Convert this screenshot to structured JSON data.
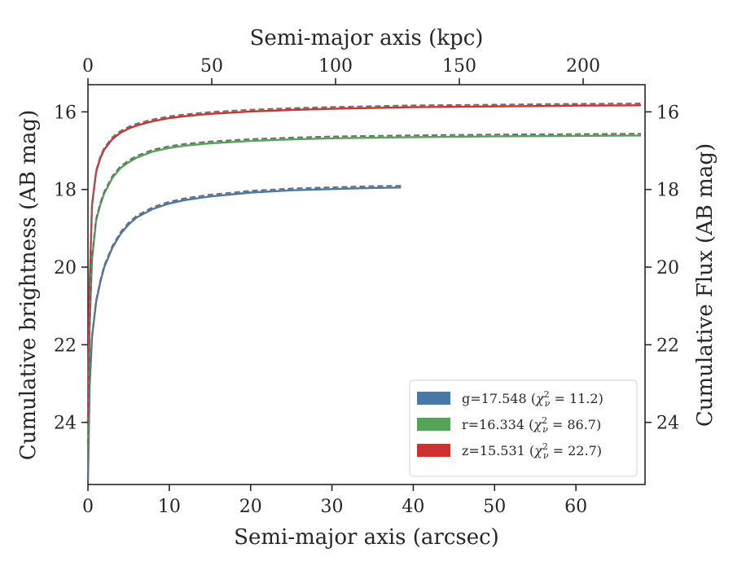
{
  "chart_data": {
    "type": "line",
    "xlabel": "Semi-major axis (arcsec)",
    "x2label": "Semi-major axis (kpc)",
    "ylabel": "Cumulative brightness (AB mag)",
    "y2label": "Cumulative Flux (AB mag)",
    "xlim": [
      0,
      68.5
    ],
    "x2lim": [
      0,
      225
    ],
    "ylim": [
      25.6,
      15.3
    ],
    "xticks": [
      0,
      10,
      20,
      30,
      40,
      50,
      60
    ],
    "x2ticks": [
      0,
      50,
      100,
      150,
      200
    ],
    "yticks": [
      16,
      18,
      20,
      22,
      24
    ],
    "grid": false,
    "legend_position": "lower-right",
    "series": [
      {
        "name": "g=17.548",
        "chi2": "11.2",
        "color": "#4878a8",
        "x": [
          0.0,
          0.2,
          0.5,
          1.0,
          1.5,
          2.0,
          3.0,
          4.0,
          5.0,
          6.0,
          8.0,
          10.0,
          12.0,
          15.0,
          20.0,
          25.0,
          30.0,
          35.0,
          38.5
        ],
        "y": [
          25.5,
          23.1,
          21.8,
          20.9,
          20.4,
          20.0,
          19.5,
          19.15,
          18.9,
          18.72,
          18.5,
          18.36,
          18.27,
          18.18,
          18.08,
          18.02,
          17.99,
          17.96,
          17.95
        ]
      },
      {
        "name": "r=16.334",
        "chi2": "86.7",
        "color": "#55a357",
        "x": [
          0.0,
          0.2,
          0.5,
          1.0,
          1.5,
          2.0,
          3.0,
          4.0,
          5.0,
          6.0,
          8.0,
          10.0,
          12.0,
          15.0,
          20.0,
          25.0,
          30.0,
          40.0,
          50.0,
          60.0,
          68.0
        ],
        "y": [
          24.6,
          21.6,
          19.8,
          18.8,
          18.4,
          18.1,
          17.7,
          17.45,
          17.3,
          17.18,
          17.02,
          16.93,
          16.87,
          16.81,
          16.75,
          16.71,
          16.68,
          16.65,
          16.63,
          16.62,
          16.61
        ]
      },
      {
        "name": "z=15.531",
        "chi2": "22.7",
        "color": "#d03030",
        "x": [
          0.0,
          0.2,
          0.5,
          1.0,
          1.5,
          2.0,
          3.0,
          4.0,
          5.0,
          6.0,
          8.0,
          10.0,
          12.0,
          15.0,
          20.0,
          25.0,
          30.0,
          40.0,
          50.0,
          60.0,
          68.0
        ],
        "y": [
          24.0,
          20.5,
          18.4,
          17.55,
          17.2,
          16.97,
          16.7,
          16.54,
          16.43,
          16.35,
          16.24,
          16.16,
          16.11,
          16.05,
          15.99,
          15.95,
          15.92,
          15.88,
          15.86,
          15.84,
          15.83
        ]
      }
    ],
    "model_color": "#6e6e6e"
  }
}
